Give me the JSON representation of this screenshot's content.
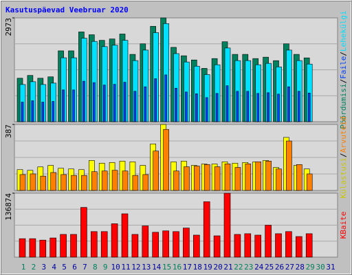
{
  "title": "Kasutuspäevad Veebruar 2020",
  "legend_separator": "/",
  "chart_data": [
    {
      "type": "bar",
      "ylim": [
        0,
        2973
      ],
      "yticks": [
        2973
      ],
      "series": [
        {
          "name": "Pöördumisi",
          "color": "#00805c",
          "values": [
            1245,
            1325,
            1245,
            1285,
            2029,
            2029,
            2571,
            2490,
            2330,
            2370,
            2511,
            1928,
            2230,
            2732,
            2973,
            2129,
            1888,
            1768,
            1527,
            1808,
            2290,
            1928,
            1928,
            1808,
            1848,
            1748,
            2230,
            1928,
            1828,
            null,
            null
          ]
        },
        {
          "name": "Faile",
          "color": "#0040ff",
          "values": [
            560,
            600,
            560,
            580,
            910,
            910,
            1160,
            1120,
            1050,
            1070,
            1130,
            870,
            1000,
            1230,
            1340,
            960,
            850,
            800,
            690,
            810,
            1030,
            870,
            870,
            810,
            830,
            790,
            1000,
            870,
            820,
            null,
            null
          ]
        },
        {
          "name": "Lehekülgi",
          "color": "#00e0ff",
          "values": [
            1065,
            1145,
            1065,
            1105,
            1830,
            1830,
            2390,
            2300,
            2150,
            2190,
            2330,
            1750,
            2050,
            2550,
            2810,
            1950,
            1710,
            1590,
            1350,
            1630,
            2110,
            1750,
            1750,
            1630,
            1670,
            1570,
            2050,
            1750,
            1650,
            null,
            null
          ]
        }
      ]
    },
    {
      "type": "bar",
      "ylim": [
        0,
        387
      ],
      "yticks": [
        387
      ],
      "series": [
        {
          "name": "Külastusi",
          "color": "#ffff00",
          "values": [
            122,
            118,
            138,
            147,
            130,
            126,
            122,
            176,
            160,
            164,
            172,
            168,
            147,
            273,
            387,
            168,
            172,
            147,
            155,
            155,
            168,
            160,
            164,
            168,
            176,
            135,
            311,
            147,
            126,
            null,
            null
          ]
        },
        {
          "name": "Arvuteid",
          "color": "#ff8000",
          "values": [
            93,
            97,
            84,
            105,
            93,
            88,
            88,
            110,
            114,
            118,
            114,
            88,
            93,
            231,
            358,
            114,
            139,
            143,
            152,
            139,
            156,
            135,
            156,
            168,
            172,
            126,
            290,
            152,
            97,
            null,
            null
          ]
        }
      ]
    },
    {
      "type": "bar",
      "ylim": [
        0,
        136874
      ],
      "yticks": [
        136874
      ],
      "categories": [
        "1",
        "2",
        "3",
        "4",
        "5",
        "6",
        "7",
        "8",
        "9",
        "10",
        "11",
        "12",
        "13",
        "14",
        "15",
        "16",
        "17",
        "18",
        "19",
        "20",
        "21",
        "22",
        "23",
        "24",
        "25",
        "26",
        "27",
        "28",
        "29",
        "30",
        "31"
      ],
      "label_colors": [
        "#00805c",
        "#00805c",
        "#0000a0",
        "#0000a0",
        "#0000a0",
        "#0000a0",
        "#0000a0",
        "#00805c",
        "#00805c",
        "#0000a0",
        "#0000a0",
        "#0000a0",
        "#0000a0",
        "#0000a0",
        "#00805c",
        "#00805c",
        "#0000a0",
        "#0000a0",
        "#0000a0",
        "#0000a0",
        "#0000a0",
        "#00805c",
        "#00805c",
        "#0000a0",
        "#0000a0",
        "#0000a0",
        "#0000a0",
        "#0000a0",
        "#00805c",
        "#00805c",
        "#0000a0"
      ],
      "series": [
        {
          "name": "KBaite",
          "color": "#ff0000",
          "values": [
            39540,
            39540,
            36500,
            41060,
            48670,
            48670,
            106460,
            54750,
            54750,
            71480,
            92770,
            48670,
            66920,
            53230,
            56270,
            54750,
            62350,
            47150,
            118630,
            45630,
            136874,
            48670,
            50190,
            47150,
            68440,
            50190,
            54750,
            44100,
            50190,
            null,
            null
          ]
        }
      ]
    }
  ]
}
